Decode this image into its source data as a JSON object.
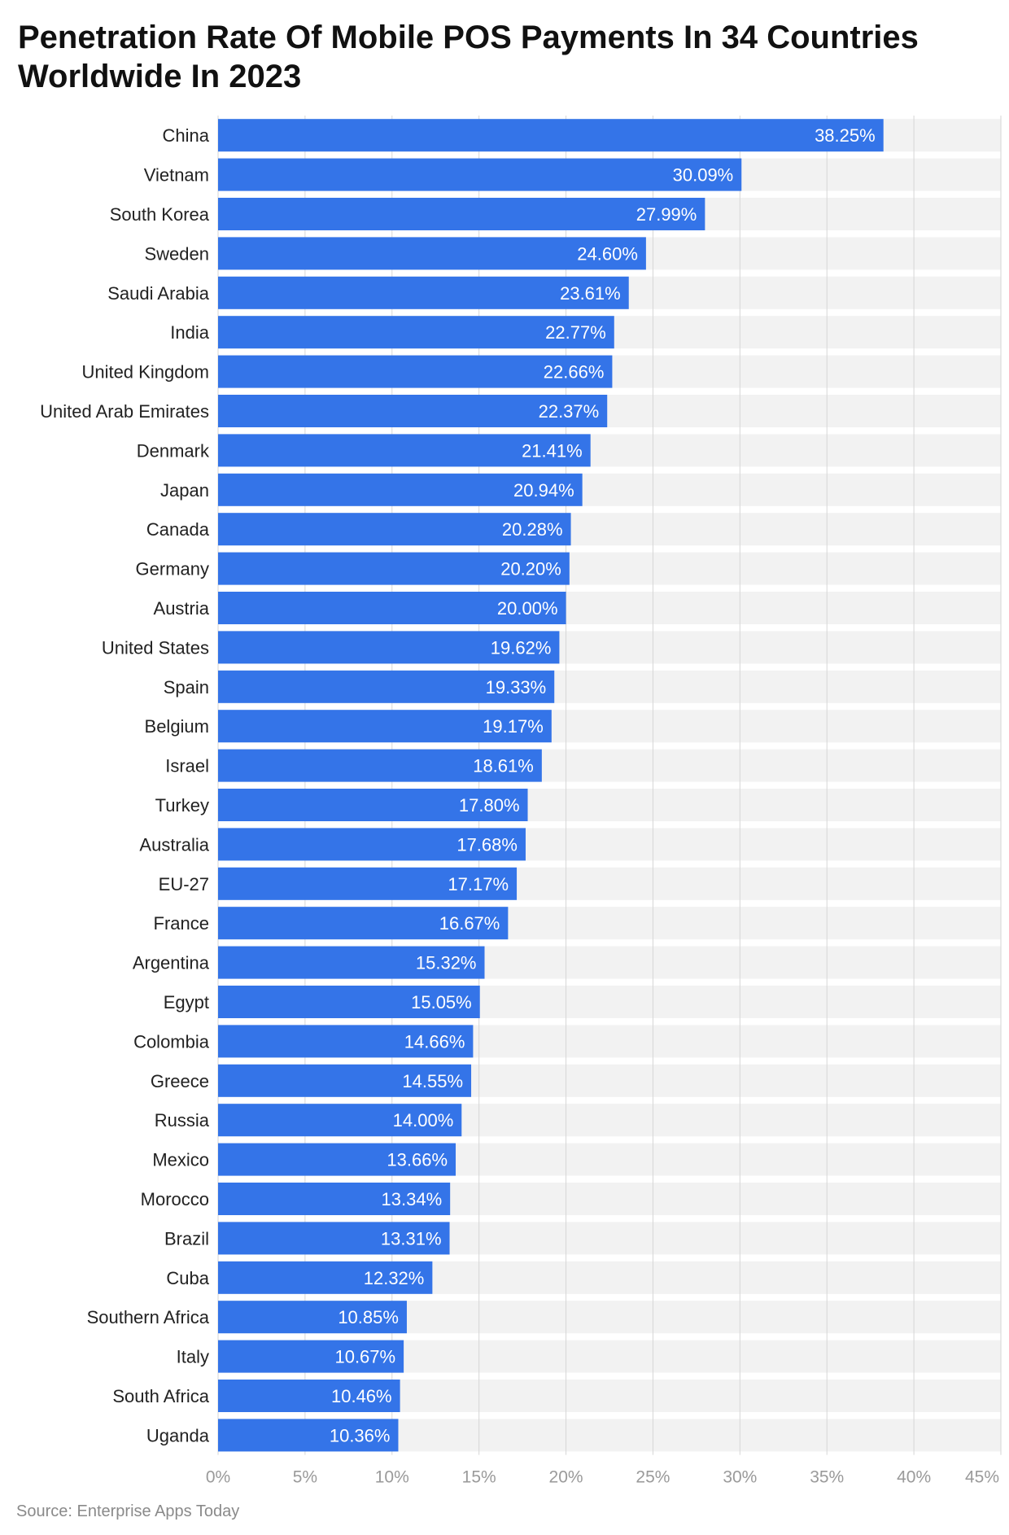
{
  "title": "Penetration Rate Of Mobile POS Payments In 34 Countries Worldwide In 2023",
  "source": "Source: Enterprise Apps Today",
  "colors": {
    "bar": "#3474e8",
    "band": "#f2f2f2",
    "grid": "#d6d6d6"
  },
  "chart_data": {
    "type": "bar",
    "orientation": "horizontal",
    "title": "Penetration Rate Of Mobile POS Payments In 34 Countries Worldwide In 2023",
    "xlabel": "",
    "ylabel": "",
    "xlim": [
      0,
      45
    ],
    "ticks": [
      0,
      5,
      10,
      15,
      20,
      25,
      30,
      35,
      40,
      45
    ],
    "tick_labels": [
      "0%",
      "5%",
      "10%",
      "15%",
      "20%",
      "25%",
      "30%",
      "35%",
      "40%",
      "45%"
    ],
    "grid": true,
    "categories": [
      "China",
      "Vietnam",
      "South Korea",
      "Sweden",
      "Saudi Arabia",
      "India",
      "United Kingdom",
      "United Arab Emirates",
      "Denmark",
      "Japan",
      "Canada",
      "Germany",
      "Austria",
      "United States",
      "Spain",
      "Belgium",
      "Israel",
      "Turkey",
      "Australia",
      "EU-27",
      "France",
      "Argentina",
      "Egypt",
      "Colombia",
      "Greece",
      "Russia",
      "Mexico",
      "Morocco",
      "Brazil",
      "Cuba",
      "Southern Africa",
      "Italy",
      "South Africa",
      "Uganda"
    ],
    "values": [
      38.25,
      30.09,
      27.99,
      24.6,
      23.61,
      22.77,
      22.66,
      22.37,
      21.41,
      20.94,
      20.28,
      20.2,
      20.0,
      19.62,
      19.33,
      19.17,
      18.61,
      17.8,
      17.68,
      17.17,
      16.67,
      15.32,
      15.05,
      14.66,
      14.55,
      14.0,
      13.66,
      13.34,
      13.31,
      12.32,
      10.85,
      10.67,
      10.46,
      10.36
    ],
    "value_labels": [
      "38.25%",
      "30.09%",
      "27.99%",
      "24.60%",
      "23.61%",
      "22.77%",
      "22.66%",
      "22.37%",
      "21.41%",
      "20.94%",
      "20.28%",
      "20.20%",
      "20.00%",
      "19.62%",
      "19.33%",
      "19.17%",
      "18.61%",
      "17.80%",
      "17.68%",
      "17.17%",
      "16.67%",
      "15.32%",
      "15.05%",
      "14.66%",
      "14.55%",
      "14.00%",
      "13.66%",
      "13.34%",
      "13.31%",
      "12.32%",
      "10.85%",
      "10.67%",
      "10.46%",
      "10.36%"
    ]
  }
}
